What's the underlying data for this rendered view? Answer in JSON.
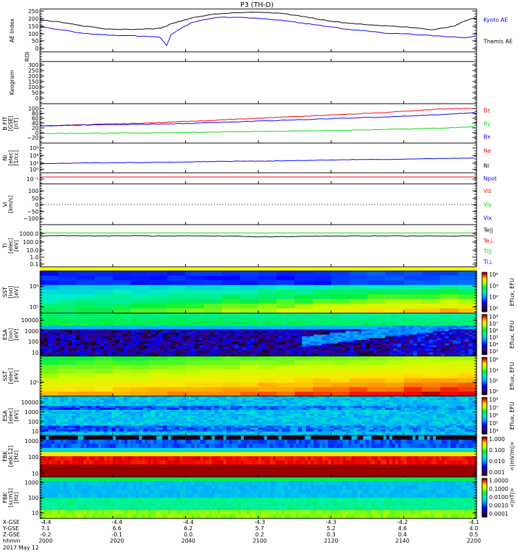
{
  "title": "P3 (TH-D)",
  "colors": {
    "blue": "#0000ff",
    "red": "#ff0000",
    "green": "#00dd00",
    "black": "#000000",
    "yellow": "#ffff00"
  },
  "panels": [
    {
      "id": "ae",
      "label": "AE Index",
      "yticks": [
        "250",
        "200",
        "150",
        "100",
        "50",
        "0"
      ],
      "legend": [
        {
          "text": "Kyoto AE",
          "color": "#0000ff"
        },
        {
          "text": "Themis AE",
          "color": "#000000"
        }
      ]
    },
    {
      "id": "roi",
      "label": "ROI",
      "yticks": [],
      "legend": []
    },
    {
      "id": "keo",
      "label": "Keogram",
      "yticks": [
        "300",
        "250",
        "200",
        "150",
        "100",
        "50",
        "0"
      ],
      "legend": []
    },
    {
      "id": "bfit",
      "label": "B FIT [GSE] [nT]",
      "yticks": [
        "100",
        "80",
        "60",
        "40",
        "20",
        "0",
        "−20"
      ],
      "legend": [
        {
          "text": "Bz",
          "color": "#ff0000"
        },
        {
          "text": "By",
          "color": "#00dd00"
        },
        {
          "text": "Bx",
          "color": "#0000ff"
        }
      ]
    },
    {
      "id": "ni",
      "label": "Ni [elec] [1/cc]",
      "yticks": [
        "10⁶",
        "10⁴",
        "10²",
        "10⁰"
      ],
      "legend": [
        {
          "text": "Ne",
          "color": "#ff0000"
        },
        {
          "text": "Ni",
          "color": "#000000"
        }
      ]
    },
    {
      "id": "npot",
      "label": "",
      "yticks": [
        "10⁻¹"
      ],
      "legend": [
        {
          "text": "Npot",
          "color": "#0000ff"
        }
      ]
    },
    {
      "id": "vi",
      "label": "Vi [km/s]",
      "yticks": [
        "100",
        "50",
        "0",
        "−50",
        "−100"
      ],
      "legend": [
        {
          "text": "Viz",
          "color": "#ff0000"
        },
        {
          "text": "Viy",
          "color": "#00dd00"
        },
        {
          "text": "Vix",
          "color": "#0000ff"
        }
      ]
    },
    {
      "id": "t",
      "label": "Ti [elec] [eV]",
      "yticks": [
        "1000.0",
        "100.0",
        "10.0",
        "1.0",
        "0.1"
      ],
      "legend": [
        {
          "text": "Te||",
          "color": "#000000"
        },
        {
          "text": "Te⊥",
          "color": "#ff0000"
        },
        {
          "text": "Ti||",
          "color": "#00dd00"
        },
        {
          "text": "Ti⊥",
          "color": "#0000ff"
        }
      ]
    },
    {
      "id": "ssti",
      "label": "SST [ion] [eV]",
      "yticks": [
        "10⁶",
        "10⁵"
      ],
      "cbar": {
        "ticks": [
          "10⁶",
          "10⁴",
          "10²",
          "10⁰"
        ],
        "unit": "Eflux, EFU"
      }
    },
    {
      "id": "esai",
      "label": "ESA [ion] [eV]",
      "yticks": [
        "10000",
        "1000",
        "100",
        "10"
      ],
      "cbar": {
        "ticks": [
          "10⁸",
          "10⁷",
          "10⁶",
          "10⁵",
          "10⁴",
          "10³"
        ],
        "unit": "Eflux, EFU"
      }
    },
    {
      "id": "sste",
      "label": "SST [elec] [eV]",
      "yticks": [
        "10⁵"
      ],
      "cbar": {
        "ticks": [
          "10⁶",
          "10⁴",
          "10²",
          "10⁰"
        ],
        "unit": "Eflux, EFU"
      }
    },
    {
      "id": "esae",
      "label": "ESA [elec] [eV]",
      "yticks": [
        "10000",
        "1000",
        "100",
        "10"
      ],
      "cbar": {
        "ticks": [
          "10⁸",
          "10⁷",
          "10⁶",
          "10⁵",
          "10⁴"
        ],
        "unit": "Eflux, EFU"
      }
    },
    {
      "id": "fbke",
      "label": "FBK [edc12] [Hz]",
      "yticks": [
        "1000",
        "100",
        "10"
      ],
      "cbar": {
        "ticks": [
          "1.000",
          "0.100",
          "0.010",
          "0.001"
        ],
        "unit": "<|mV/m|>"
      }
    },
    {
      "id": "fbks",
      "label": "FBK [scm1] [Hz]",
      "yticks": [
        "1000",
        "100",
        "10"
      ],
      "cbar": {
        "ticks": [
          "1.0000",
          "0.1000",
          "0.0100",
          "0.0010",
          "0.0001"
        ],
        "unit": "<|nT|>"
      }
    }
  ],
  "axis": {
    "row_labels": [
      "X-GSE",
      "Y-GSE",
      "Z-GSE",
      "hhmm",
      "2017 May 12"
    ],
    "ticks": [
      {
        "x": "-4.4",
        "y": "7.1",
        "z": "-0.2",
        "t": "2000"
      },
      {
        "x": "-4.4",
        "y": "6.6",
        "z": "-0.1",
        "t": "2020"
      },
      {
        "x": "-4.4",
        "y": "6.2",
        "z": "0.0",
        "t": "2040"
      },
      {
        "x": "-4.3",
        "y": "5.7",
        "z": "0.2",
        "t": "2100"
      },
      {
        "x": "-4.3",
        "y": "5.2",
        "z": "0.3",
        "t": "2120"
      },
      {
        "x": "-4.2",
        "y": "4.6",
        "z": "0.4",
        "t": "2140"
      },
      {
        "x": "-4.1",
        "y": "4.0",
        "z": "0.5",
        "t": "2200"
      }
    ]
  },
  "chart_data": {
    "type": "line",
    "x_minutes": [
      0,
      10,
      20,
      30,
      40,
      50,
      55,
      58,
      60,
      65,
      70,
      80,
      90,
      100,
      110,
      120,
      130,
      140,
      150,
      160,
      170,
      180,
      190,
      195,
      200
    ],
    "series": [
      {
        "name": "Themis AE",
        "panel": "ae",
        "values": [
          190,
          175,
          150,
          130,
          128,
          130,
          135,
          150,
          165,
          185,
          205,
          230,
          240,
          242,
          235,
          215,
          190,
          170,
          160,
          150,
          140,
          125,
          150,
          185,
          210
        ]
      },
      {
        "name": "Kyoto AE",
        "panel": "ae",
        "values": [
          145,
          125,
          100,
          90,
          85,
          80,
          75,
          20,
          90,
          140,
          175,
          205,
          210,
          200,
          190,
          170,
          150,
          130,
          115,
          100,
          95,
          85,
          75,
          70,
          85
        ]
      },
      {
        "name": "Bz",
        "panel": "bfit",
        "values": [
          28,
          30,
          33,
          36,
          38,
          40,
          42,
          43,
          44,
          46,
          48,
          52,
          56,
          60,
          64,
          68,
          72,
          76,
          80,
          85,
          90,
          96,
          100,
          100,
          100
        ]
      },
      {
        "name": "By",
        "panel": "bfit",
        "values": [
          -3,
          -3,
          -2,
          -2,
          -1,
          -1,
          0,
          0,
          0,
          1,
          2,
          3,
          4,
          5,
          6,
          8,
          9,
          10,
          12,
          14,
          16,
          18,
          21,
          23,
          26
        ]
      },
      {
        "name": "Bx",
        "panel": "bfit",
        "values": [
          28,
          30,
          32,
          33,
          34,
          35,
          36,
          36,
          37,
          38,
          39,
          42,
          45,
          48,
          51,
          54,
          57,
          60,
          63,
          66,
          70,
          74,
          78,
          81,
          84
        ]
      },
      {
        "name": "Ni",
        "panel": "ni",
        "values": [
          1.6,
          1.7,
          1.8,
          1.8,
          1.9,
          1.9,
          2.0,
          2.0,
          2.0,
          2.0,
          2.1,
          2.2,
          2.3,
          2.3,
          2.4,
          2.5,
          2.6,
          2.7,
          2.8,
          2.8,
          2.9,
          3.0,
          3.1,
          3.1,
          3.2
        ]
      },
      {
        "name": "Te||",
        "panel": "t",
        "values": [
          3.4,
          3.4,
          3.4,
          3.4,
          3.4,
          3.4,
          3.4,
          3.4,
          3.4,
          3.4,
          3.4,
          3.4,
          3.35,
          3.3,
          3.25,
          3.3,
          3.35,
          3.4,
          3.4,
          3.4,
          3.4,
          3.4,
          3.4,
          3.4,
          3.4
        ]
      },
      {
        "name": "Ti",
        "panel": "t",
        "values": [
          2.7,
          2.75,
          2.7,
          2.7,
          2.75,
          2.7,
          2.7,
          2.7,
          2.7,
          2.7,
          2.75,
          2.7,
          2.65,
          2.6,
          2.6,
          2.65,
          2.7,
          2.7,
          2.7,
          2.7,
          2.7,
          2.7,
          2.7,
          2.7,
          2.7
        ]
      }
    ],
    "xlabel": "hhmm",
    "xlim": [
      2000,
      2200
    ]
  }
}
